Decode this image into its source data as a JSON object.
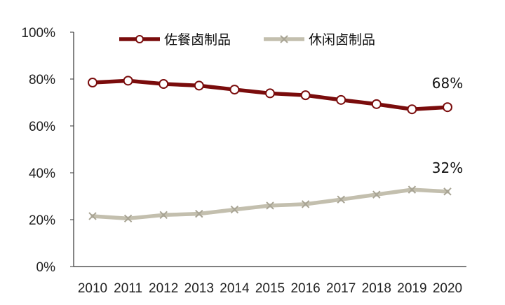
{
  "chart_data": {
    "type": "line",
    "categories": [
      "2010",
      "2011",
      "2012",
      "2013",
      "2014",
      "2015",
      "2016",
      "2017",
      "2018",
      "2019",
      "2020"
    ],
    "ylim": [
      0,
      100
    ],
    "yticks": [
      "0%",
      "20%",
      "40%",
      "60%",
      "80%",
      "100%"
    ],
    "grid": false,
    "legend_position": "top",
    "series": [
      {
        "name": "佐餐卤制品",
        "color": "#7a0c0c",
        "marker": "circle",
        "values": [
          78.5,
          79.3,
          77.9,
          77.2,
          75.5,
          73.9,
          73.1,
          71.1,
          69.3,
          67.1,
          68.0
        ],
        "end_label": "68%"
      },
      {
        "name": "休闲卤制品",
        "color": "#c3bfae",
        "marker": "x",
        "values": [
          21.5,
          20.5,
          22.0,
          22.5,
          24.3,
          26.0,
          26.6,
          28.6,
          30.7,
          32.8,
          32.0
        ],
        "end_label": "32%"
      }
    ]
  }
}
